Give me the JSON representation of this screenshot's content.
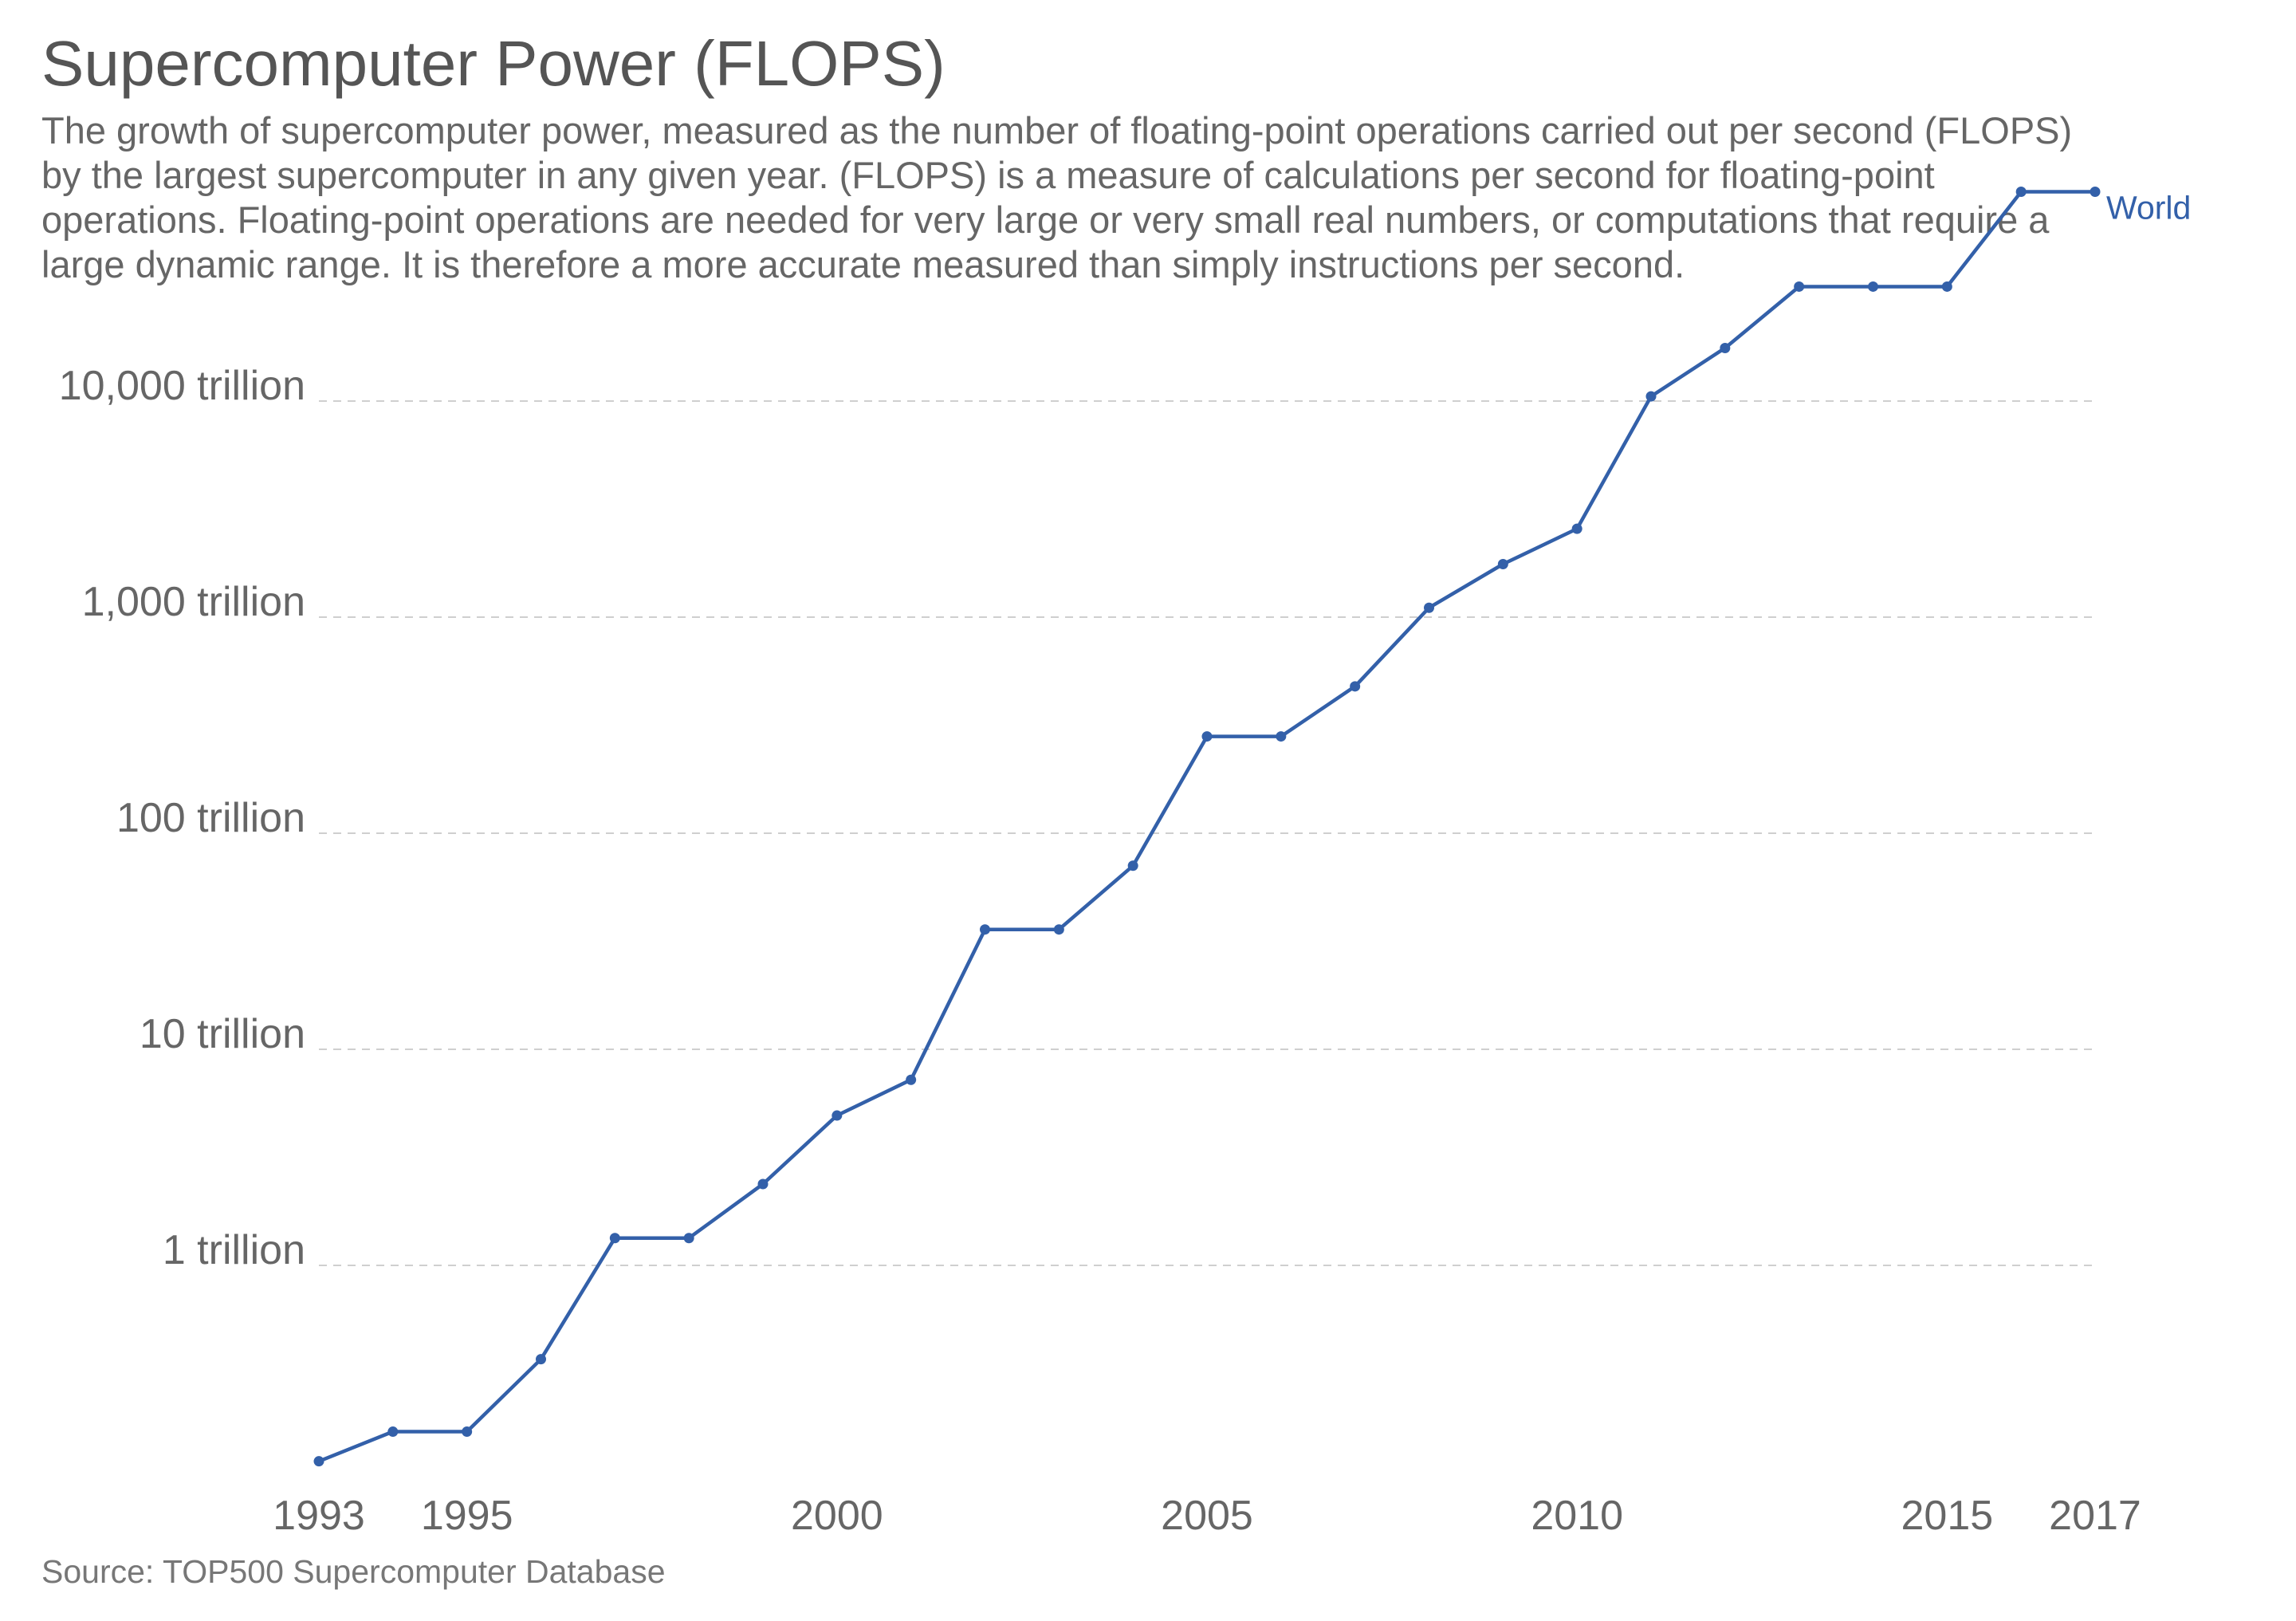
{
  "chart_data": {
    "type": "line",
    "title": "Supercomputer Power (FLOPS)",
    "subtitle": "The growth of supercomputer power, measured as the number of floating-point operations carried out per second (FLOPS) by the largest supercomputer in any given year. (FLOPS) is a measure of calculations per second for floating-point operations. Floating-point operations are needed for very large or very small real numbers, or computations that require a large dynamic range. It is therefore a more accurate measured than simply instructions per second.",
    "source": "Source: TOP500 Supercomputer Database",
    "xlabel": "",
    "ylabel": "",
    "yscale": "log",
    "xlim": [
      1993,
      2017
    ],
    "ylim": [
      0.1,
      100000
    ],
    "x_ticks": [
      {
        "value": 1993,
        "label": "1993"
      },
      {
        "value": 1995,
        "label": "1995"
      },
      {
        "value": 2000,
        "label": "2000"
      },
      {
        "value": 2005,
        "label": "2005"
      },
      {
        "value": 2010,
        "label": "2010"
      },
      {
        "value": 2015,
        "label": "2015"
      },
      {
        "value": 2017,
        "label": "2017"
      }
    ],
    "y_ticks": [
      {
        "value": 1,
        "label": "1 trillion"
      },
      {
        "value": 10,
        "label": "10 trillion"
      },
      {
        "value": 100,
        "label": "100 trillion"
      },
      {
        "value": 1000,
        "label": "1,000 trillion"
      },
      {
        "value": 10000,
        "label": "10,000 trillion"
      }
    ],
    "grid": true,
    "units": "trillion FLOPS",
    "series": [
      {
        "name": "World",
        "color": "#3360a9",
        "x": [
          1993,
          1994,
          1995,
          1996,
          1997,
          1998,
          1999,
          2000,
          2001,
          2002,
          2003,
          2004,
          2005,
          2006,
          2007,
          2008,
          2009,
          2010,
          2011,
          2012,
          2013,
          2014,
          2015,
          2016,
          2017
        ],
        "values": [
          0.124,
          0.17,
          0.17,
          0.368,
          1.338,
          1.338,
          2.379,
          4.938,
          7.226,
          35.86,
          35.86,
          70.72,
          280.6,
          280.6,
          478.2,
          1105,
          1759,
          2566,
          10510,
          17590,
          33860,
          33860,
          33860,
          93010,
          93010
        ]
      }
    ]
  }
}
